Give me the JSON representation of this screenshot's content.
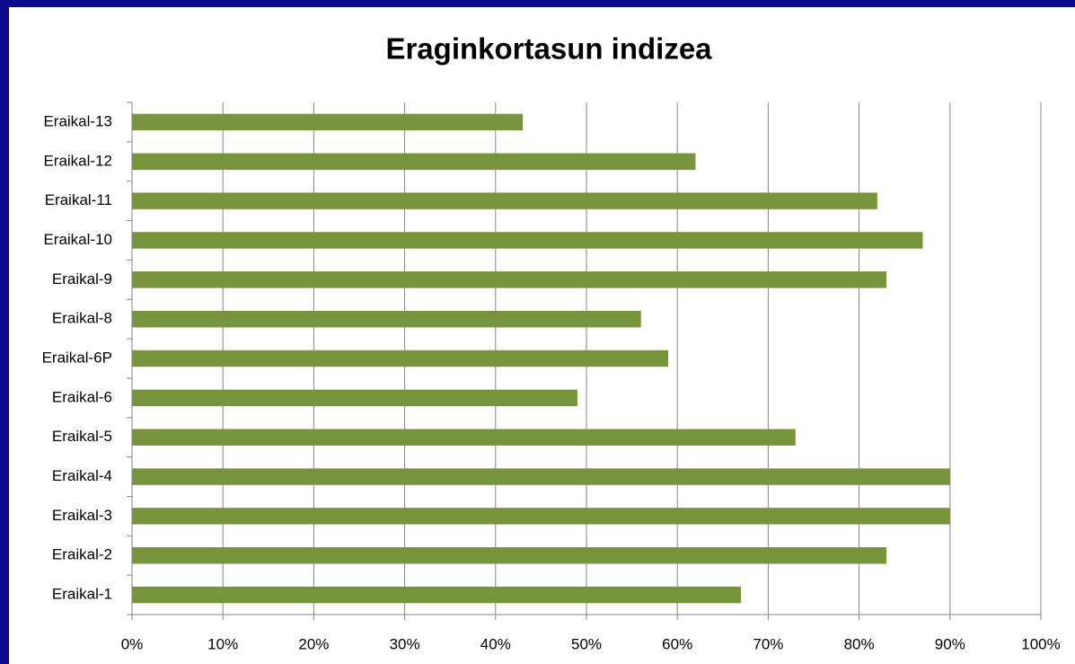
{
  "chart_data": {
    "type": "bar",
    "orientation": "horizontal",
    "title": "Eraginkortasun indizea",
    "categories": [
      "Eraikal-1",
      "Eraikal-2",
      "Eraikal-3",
      "Eraikal-4",
      "Eraikal-5",
      "Eraikal-6",
      "Eraikal-6P",
      "Eraikal-8",
      "Eraikal-9",
      "Eraikal-10",
      "Eraikal-11",
      "Eraikal-12",
      "Eraikal-13"
    ],
    "values": [
      67,
      83,
      90,
      90,
      73,
      49,
      59,
      56,
      83,
      87,
      82,
      62,
      43
    ],
    "color": "#77933c",
    "xlim": [
      0,
      100
    ],
    "xticks": [
      {
        "value": 0,
        "label": "0%"
      },
      {
        "value": 10,
        "label": "10%"
      },
      {
        "value": 20,
        "label": "20%"
      },
      {
        "value": 30,
        "label": "30%"
      },
      {
        "value": 40,
        "label": "40%"
      },
      {
        "value": 50,
        "label": "50%"
      },
      {
        "value": 60,
        "label": "60%"
      },
      {
        "value": 70,
        "label": "70%"
      },
      {
        "value": 80,
        "label": "80%"
      },
      {
        "value": 90,
        "label": "90%"
      },
      {
        "value": 100,
        "label": "100%"
      }
    ],
    "grid": true
  }
}
